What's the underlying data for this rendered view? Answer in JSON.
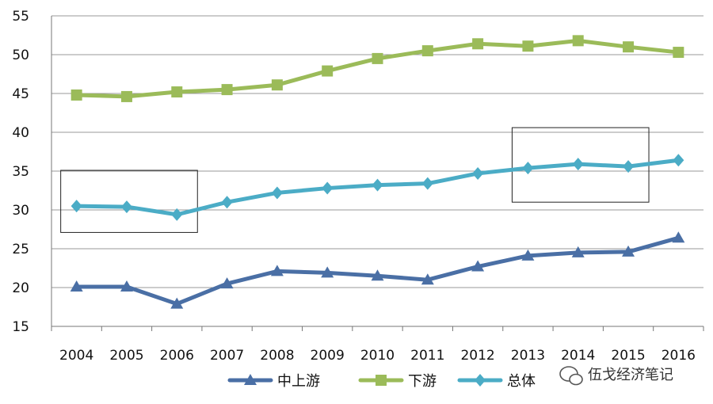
{
  "chart_data": {
    "type": "line",
    "title": "",
    "xlabel": "",
    "ylabel": "",
    "categories": [
      "2004",
      "2005",
      "2006",
      "2007",
      "2008",
      "2009",
      "2010",
      "2011",
      "2012",
      "2013",
      "2014",
      "2015",
      "2016"
    ],
    "ylim": [
      15,
      55
    ],
    "yticks": [
      15,
      20,
      25,
      30,
      35,
      40,
      45,
      50,
      55
    ],
    "grid": true,
    "legend_position": "bottom",
    "series": [
      {
        "name": "中上游",
        "marker": "triangle",
        "color": "#4a6fa5",
        "values": [
          20.1,
          20.1,
          17.9,
          20.5,
          22.1,
          21.9,
          21.5,
          21.0,
          22.7,
          24.1,
          24.5,
          24.6,
          26.4
        ]
      },
      {
        "name": "下游",
        "marker": "square",
        "color": "#9bbb59",
        "values": [
          44.8,
          44.6,
          45.2,
          45.5,
          46.1,
          47.9,
          49.5,
          50.5,
          51.4,
          51.1,
          51.8,
          51.0,
          50.3
        ]
      },
      {
        "name": "总体",
        "marker": "diamond",
        "color": "#4bacc6",
        "values": [
          30.5,
          30.4,
          29.4,
          31.0,
          32.2,
          32.8,
          33.2,
          33.4,
          34.7,
          35.4,
          35.9,
          35.6,
          36.4
        ]
      }
    ],
    "annotations": [
      {
        "type": "rect",
        "x_from": "2004",
        "x_to": "2006",
        "y_from": 27.1,
        "y_to": 35.1
      },
      {
        "type": "rect",
        "x_from": "2013",
        "x_to": "2015",
        "y_from": 31.0,
        "y_to": 40.6
      }
    ]
  },
  "watermark": {
    "text": "伍戈经济笔记",
    "icon": "wechat-icon"
  }
}
